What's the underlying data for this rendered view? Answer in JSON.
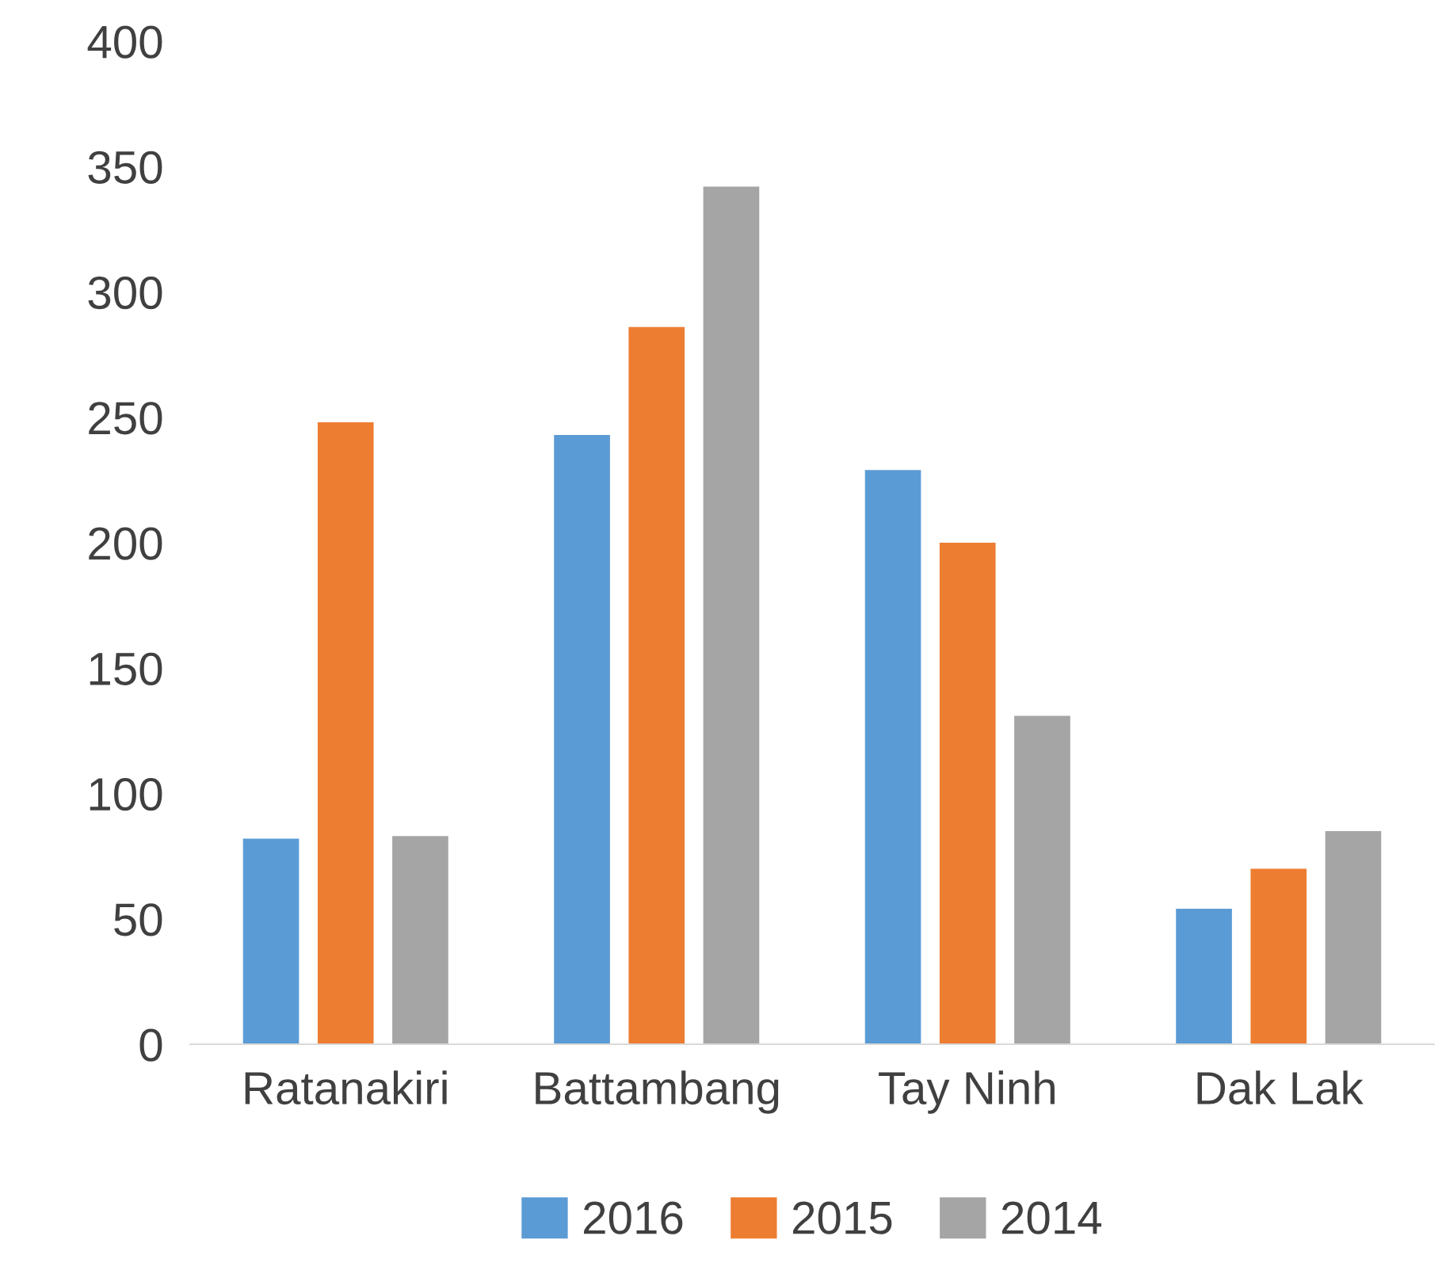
{
  "chart_data": {
    "type": "bar",
    "categories": [
      "Ratanakiri",
      "Battambang",
      "Tay Ninh",
      "Dak Lak"
    ],
    "series": [
      {
        "name": "2016",
        "color": "#5b9bd5",
        "values": [
          82,
          243,
          229,
          54
        ]
      },
      {
        "name": "2015",
        "color": "#ed7d31",
        "values": [
          248,
          286,
          200,
          70
        ]
      },
      {
        "name": "2014",
        "color": "#a5a5a5",
        "values": [
          83,
          342,
          131,
          85
        ]
      }
    ],
    "ylim": [
      0,
      400
    ],
    "yticks": [
      0,
      50,
      100,
      150,
      200,
      250,
      300,
      350,
      400
    ],
    "grid": false,
    "legend": "bottom"
  }
}
